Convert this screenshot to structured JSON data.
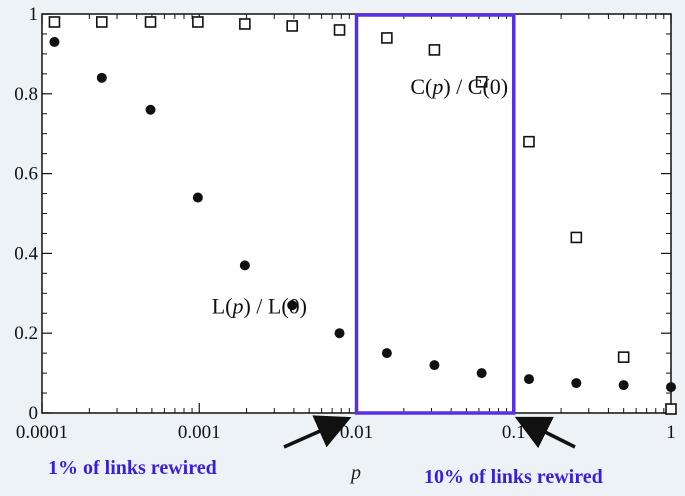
{
  "chart_data": {
    "type": "scatter",
    "xscale": "log",
    "xlim": [
      0.0001,
      1
    ],
    "ylim": [
      0,
      1
    ],
    "xticks": [
      0.0001,
      0.001,
      0.01,
      0.1,
      1
    ],
    "xtick_labels": [
      "0.0001",
      "0.001",
      "0.01",
      "0.1",
      "1"
    ],
    "yticks": [
      0,
      0.2,
      0.4,
      0.6,
      0.8,
      1
    ],
    "ytick_labels": [
      "0",
      "0.2",
      "0.4",
      "0.6",
      "0.8",
      "1"
    ],
    "xlabel": "p",
    "ylabel": "",
    "title": "",
    "grid": false,
    "series": [
      {
        "name": "C(p) / C(0)",
        "marker": "open-square",
        "color": "#111111",
        "x": [
          0.00012,
          0.00024,
          0.00049,
          0.00098,
          0.00195,
          0.0039,
          0.0078,
          0.0156,
          0.0313,
          0.0625,
          0.125,
          0.25,
          0.5,
          1
        ],
        "y": [
          0.98,
          0.98,
          0.98,
          0.98,
          0.975,
          0.97,
          0.96,
          0.94,
          0.91,
          0.83,
          0.68,
          0.44,
          0.14,
          0.01
        ]
      },
      {
        "name": "L(p) / L(0)",
        "marker": "filled-circle",
        "color": "#111111",
        "x": [
          0.00012,
          0.00024,
          0.00049,
          0.00098,
          0.00195,
          0.0039,
          0.0078,
          0.0156,
          0.0313,
          0.0625,
          0.125,
          0.25,
          0.5,
          1
        ],
        "y": [
          0.93,
          0.84,
          0.76,
          0.54,
          0.37,
          0.27,
          0.2,
          0.15,
          0.12,
          0.1,
          0.085,
          0.075,
          0.07,
          0.065
        ]
      }
    ],
    "series_labels": [
      {
        "prefix": "C(p) / C(0)",
        "x": 0.022,
        "y": 0.8
      },
      {
        "prefix": "L(p) / L(0)",
        "x": 0.0012,
        "y": 0.25
      }
    ],
    "highlight": {
      "x_from": 0.01,
      "x_to": 0.1,
      "color": "#5a2ee6"
    },
    "annotations": [
      {
        "text": "1% of links rewired",
        "points_to_x": 0.01
      },
      {
        "text": "10% of links rewired",
        "points_to_x": 0.1
      }
    ]
  }
}
